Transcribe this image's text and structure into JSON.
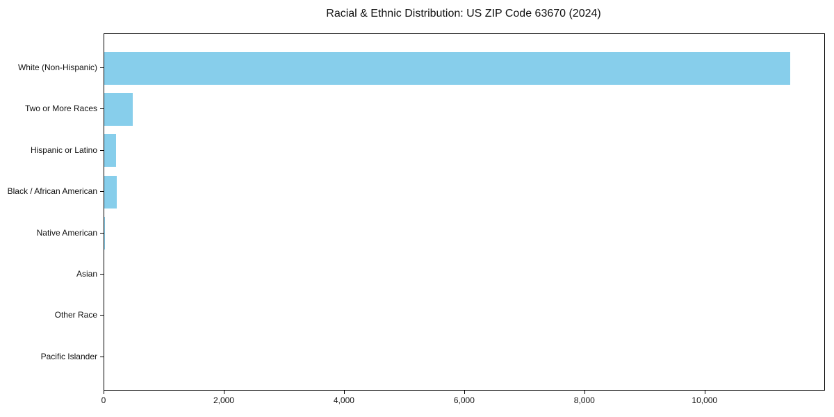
{
  "chart_data": {
    "type": "bar",
    "orientation": "horizontal",
    "title": "Racial & Ethnic Distribution: US ZIP Code 63670 (2024)",
    "categories": [
      "White (Non-Hispanic)",
      "Two or More Races",
      "Hispanic or Latino",
      "Black / African American",
      "Native American",
      "Asian",
      "Other Race",
      "Pacific Islander"
    ],
    "values": [
      11410,
      475,
      195,
      205,
      12,
      0,
      0,
      0
    ],
    "bar_color": "#87CEEB",
    "xlim": [
      0,
      11980
    ],
    "xticks": [
      0,
      2000,
      4000,
      6000,
      8000,
      10000
    ],
    "xtick_labels": [
      "0",
      "2,000",
      "4,000",
      "6,000",
      "8,000",
      "10,000"
    ],
    "xlabel": "",
    "ylabel": "",
    "grid": false,
    "legend": "none"
  }
}
